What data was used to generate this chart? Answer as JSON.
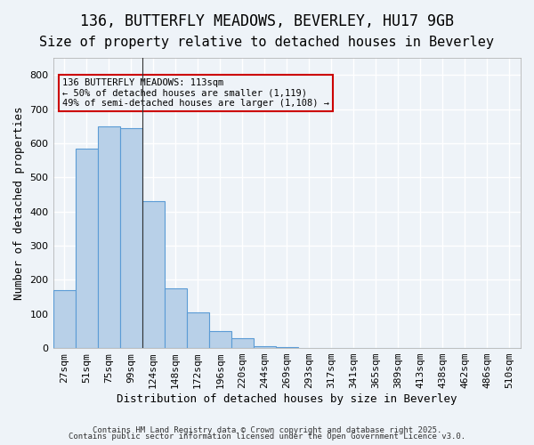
{
  "title1": "136, BUTTERFLY MEADOWS, BEVERLEY, HU17 9GB",
  "title2": "Size of property relative to detached houses in Beverley",
  "xlabel": "Distribution of detached houses by size in Beverley",
  "ylabel": "Number of detached properties",
  "bar_values": [
    170,
    585,
    650,
    645,
    430,
    175,
    105,
    50,
    30,
    5,
    2,
    1,
    1,
    1,
    0,
    0,
    0,
    0,
    0,
    0,
    0
  ],
  "categories": [
    "27sqm",
    "51sqm",
    "75sqm",
    "99sqm",
    "124sqm",
    "148sqm",
    "172sqm",
    "196sqm",
    "220sqm",
    "244sqm",
    "269sqm",
    "293sqm",
    "317sqm",
    "341sqm",
    "365sqm",
    "389sqm",
    "413sqm",
    "438sqm",
    "462sqm",
    "486sqm",
    "510sqm"
  ],
  "bar_color": "#b8d0e8",
  "bar_edge_color": "#5b9bd5",
  "bg_color": "#eef3f8",
  "grid_color": "#ffffff",
  "annotation_box_color": "#cc0000",
  "annotation_text": "136 BUTTERFLY MEADOWS: 113sqm\n← 50% of detached houses are smaller (1,119)\n49% of semi-detached houses are larger (1,108) →",
  "vline_x": 3.5,
  "ylim": [
    0,
    850
  ],
  "yticks": [
    0,
    100,
    200,
    300,
    400,
    500,
    600,
    700,
    800
  ],
  "footnote1": "Contains HM Land Registry data © Crown copyright and database right 2025.",
  "footnote2": "Contains public sector information licensed under the Open Government Licence v3.0.",
  "title_fontsize": 12,
  "subtitle_fontsize": 11,
  "axis_label_fontsize": 9,
  "tick_fontsize": 8
}
